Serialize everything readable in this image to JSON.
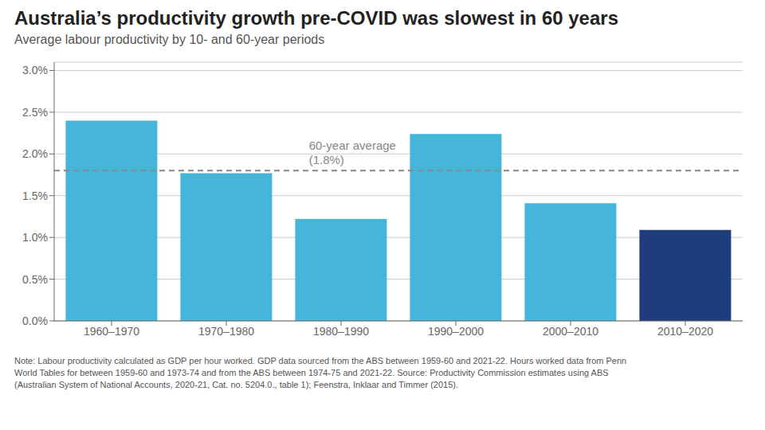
{
  "chart_data": {
    "type": "bar",
    "title": "Australia’s productivity growth pre-COVID was slowest in 60 years",
    "subtitle": "Average labour productivity by 10- and 60-year periods",
    "categories": [
      "1960–1970",
      "1970–1980",
      "1980–1990",
      "1990–2000",
      "2000–2010",
      "2010–2020"
    ],
    "values": [
      0.024,
      0.0177,
      0.0122,
      0.0224,
      0.0141,
      0.0109
    ],
    "colors": [
      "#45B5D8",
      "#45B5D8",
      "#45B5D8",
      "#45B5D8",
      "#45B5D8",
      "#1F3D7A"
    ],
    "ylim": [
      0,
      0.031
    ],
    "yticks": [
      {
        "value": 0.0,
        "label": "0.0%"
      },
      {
        "value": 0.005,
        "label": "0.5%"
      },
      {
        "value": 0.01,
        "label": "1.0%"
      },
      {
        "value": 0.015,
        "label": "1.5%"
      },
      {
        "value": 0.02,
        "label": "2.0%"
      },
      {
        "value": 0.025,
        "label": "2.5%"
      },
      {
        "value": 0.03,
        "label": "3.0%"
      }
    ],
    "grid": true,
    "reference_line": {
      "y": 0.018,
      "label": "60-year average\n(1.8%)",
      "color": "#888888",
      "line_style": "dashed"
    },
    "note": "Note: Labour productivity calculated as GDP per hour worked. GDP data sourced from the ABS between 1959-60 and 2021-22. Hours worked data from Penn\nWorld Tables for between 1959-60 and 1973-74 and from the ABS between 1974-75 and 2021-22. Source: Productivity Commission estimates using ABS\n(Australian System of National Accounts, 2020-21, Cat. no. 5204.0., table 1); Feenstra, Inklaar and Timmer (2015)."
  }
}
